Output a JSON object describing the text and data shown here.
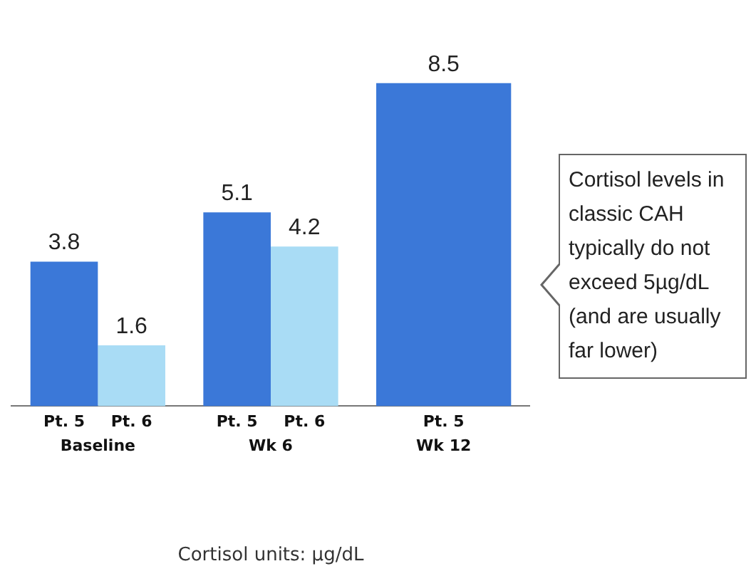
{
  "chart_data": {
    "type": "bar",
    "categories": [
      "Baseline",
      "Wk 6",
      "Wk 12"
    ],
    "series": [
      {
        "name": "Pt. 5",
        "color": "#3b78d8",
        "values": [
          3.8,
          5.1,
          8.5
        ]
      },
      {
        "name": "Pt. 6",
        "color": "#a9dcf5",
        "values": [
          1.6,
          4.2,
          null
        ]
      }
    ],
    "data_labels": true,
    "grid": false,
    "legend": false,
    "xlabel": "Cortisol units: µg/dL",
    "annotations": [
      "Cortisol levels in classic CAH typically do not exceed 5µg/dL (and are usually far lower)"
    ]
  }
}
